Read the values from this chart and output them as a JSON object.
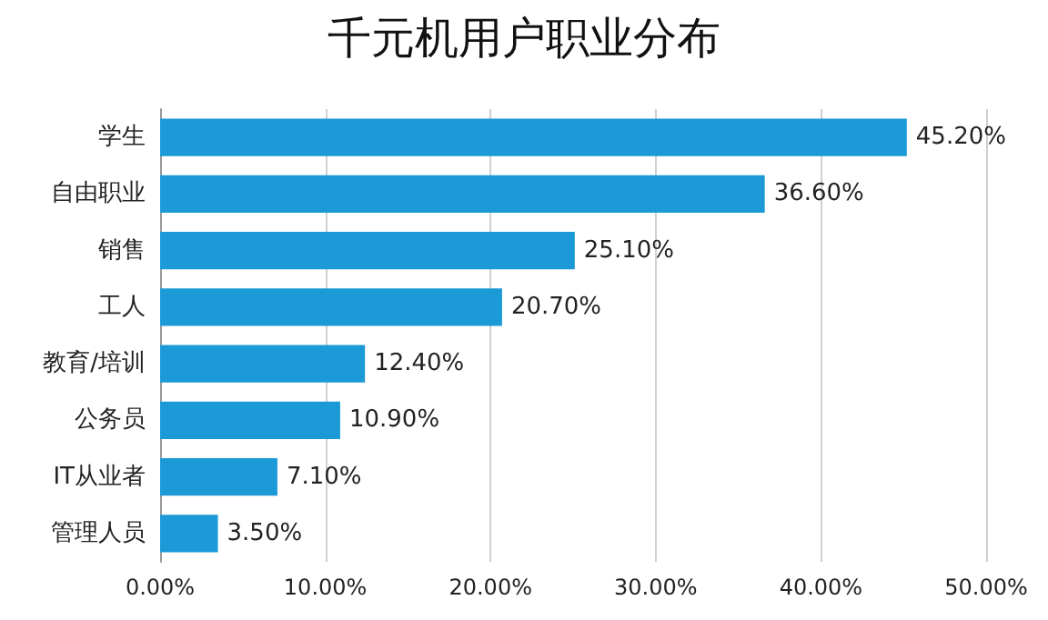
{
  "chart_data": {
    "type": "bar",
    "orientation": "horizontal",
    "title": "千元机用户职业分布",
    "categories": [
      "学生",
      "自由职业",
      "销售",
      "工人",
      "教育/培训",
      "公务员",
      "IT从业者",
      "管理人员"
    ],
    "values": [
      45.2,
      36.6,
      25.1,
      20.7,
      12.4,
      10.9,
      7.1,
      3.5
    ],
    "value_labels": [
      "45.20%",
      "36.60%",
      "25.10%",
      "20.70%",
      "12.40%",
      "10.90%",
      "7.10%",
      "3.50%"
    ],
    "color": "#1c9ad8",
    "xlim": [
      0,
      50
    ],
    "xticks": [
      {
        "value": 0,
        "label": "0.00%"
      },
      {
        "value": 10,
        "label": "10.00%"
      },
      {
        "value": 20,
        "label": "20.00%"
      },
      {
        "value": 30,
        "label": "30.00%"
      },
      {
        "value": 40,
        "label": "40.00%"
      },
      {
        "value": 50,
        "label": "50.00%"
      }
    ],
    "grid": "x"
  }
}
